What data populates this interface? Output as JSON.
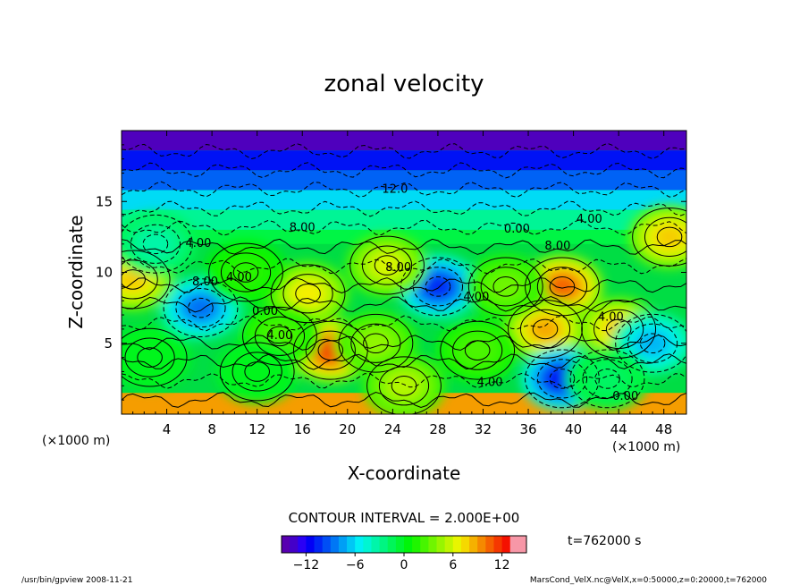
{
  "chart_data": {
    "type": "heatmap",
    "title": "zonal velocity",
    "xlabel": "X-coordinate",
    "ylabel": "Z-coordinate",
    "x_unit_left": "(×1000 m)",
    "x_unit_right": "(×1000 m)",
    "xlim": [
      0,
      50
    ],
    "ylim": [
      0,
      20
    ],
    "x_ticks": [
      4,
      8,
      12,
      16,
      20,
      24,
      28,
      32,
      36,
      40,
      44,
      48
    ],
    "x_tick_labels": [
      "4",
      "8",
      "12",
      "16",
      "20",
      "24",
      "28",
      "32",
      "36",
      "40",
      "44",
      "48"
    ],
    "y_ticks": [
      5,
      10,
      15
    ],
    "y_tick_labels": [
      "5",
      "10",
      "15"
    ],
    "contour_interval_text": "CONTOUR INTERVAL = 2.000E+00",
    "time_text": "t=762000 s",
    "colorbar": {
      "range": [
        -15,
        15
      ],
      "ticks": [
        -12,
        -6,
        0,
        6,
        12
      ],
      "tick_labels": [
        "−12",
        "−6",
        "0",
        "6",
        "12"
      ]
    },
    "contour_labels": [
      {
        "text": "12.0",
        "x": 24.2,
        "y": 15.6
      },
      {
        "text": "8.00",
        "x": 16.0,
        "y": 12.9
      },
      {
        "text": "4.00",
        "x": 6.8,
        "y": 11.8
      },
      {
        "text": "8.00",
        "x": 7.4,
        "y": 9.1
      },
      {
        "text": "4.00",
        "x": 10.4,
        "y": 9.4
      },
      {
        "text": "0.00",
        "x": 12.7,
        "y": 7.0
      },
      {
        "text": "4.00",
        "x": 14.0,
        "y": 5.3
      },
      {
        "text": "8.00",
        "x": 24.5,
        "y": 10.1
      },
      {
        "text": "4.00",
        "x": 31.4,
        "y": 8.0
      },
      {
        "text": "0.00",
        "x": 35.0,
        "y": 12.8
      },
      {
        "text": "4.00",
        "x": 41.4,
        "y": 13.5
      },
      {
        "text": "8.00",
        "x": 38.6,
        "y": 11.6
      },
      {
        "text": "4.00",
        "x": 43.3,
        "y": 6.6
      },
      {
        "text": "4.00",
        "x": 32.6,
        "y": 2.0
      },
      {
        "text": "0.00",
        "x": 44.6,
        "y": 1.0
      }
    ],
    "features": [
      {
        "x": 18.5,
        "y": 4.5,
        "value": 13
      },
      {
        "x": 16.5,
        "y": 8.5,
        "value": 8
      },
      {
        "x": 22.5,
        "y": 5.0,
        "value": 5
      },
      {
        "x": 28.0,
        "y": 9.0,
        "value": -12
      },
      {
        "x": 7.0,
        "y": 7.5,
        "value": -10
      },
      {
        "x": 39.0,
        "y": 9.0,
        "value": 12
      },
      {
        "x": 37.5,
        "y": 6.0,
        "value": 10
      },
      {
        "x": 44.0,
        "y": 6.0,
        "value": 9
      },
      {
        "x": 39.0,
        "y": 2.5,
        "value": -13
      },
      {
        "x": 47.0,
        "y": 5.0,
        "value": -8
      },
      {
        "x": 48.5,
        "y": 12.5,
        "value": 9
      },
      {
        "x": 1.0,
        "y": 9.5,
        "value": 9
      },
      {
        "x": 3.0,
        "y": 12.0,
        "value": -4
      },
      {
        "x": 2.5,
        "y": 4.0,
        "value": 0
      },
      {
        "x": 14.0,
        "y": 5.5,
        "value": 3
      },
      {
        "x": 31.5,
        "y": 4.5,
        "value": 3
      },
      {
        "x": 34.0,
        "y": 9.0,
        "value": 4
      },
      {
        "x": 11.0,
        "y": 10.0,
        "value": 2
      },
      {
        "x": 23.5,
        "y": 10.5,
        "value": 7
      },
      {
        "x": 12.0,
        "y": 3.0,
        "value": 0
      },
      {
        "x": 25.0,
        "y": 2.0,
        "value": 6
      },
      {
        "x": 43.0,
        "y": 2.5,
        "value": -2
      }
    ]
  },
  "footer": {
    "left": "/usr/bin/gpview   2008-11-21",
    "right": "MarsCond_VelX.nc@VelX,x=0:50000,z=0:20000,t=762000"
  }
}
